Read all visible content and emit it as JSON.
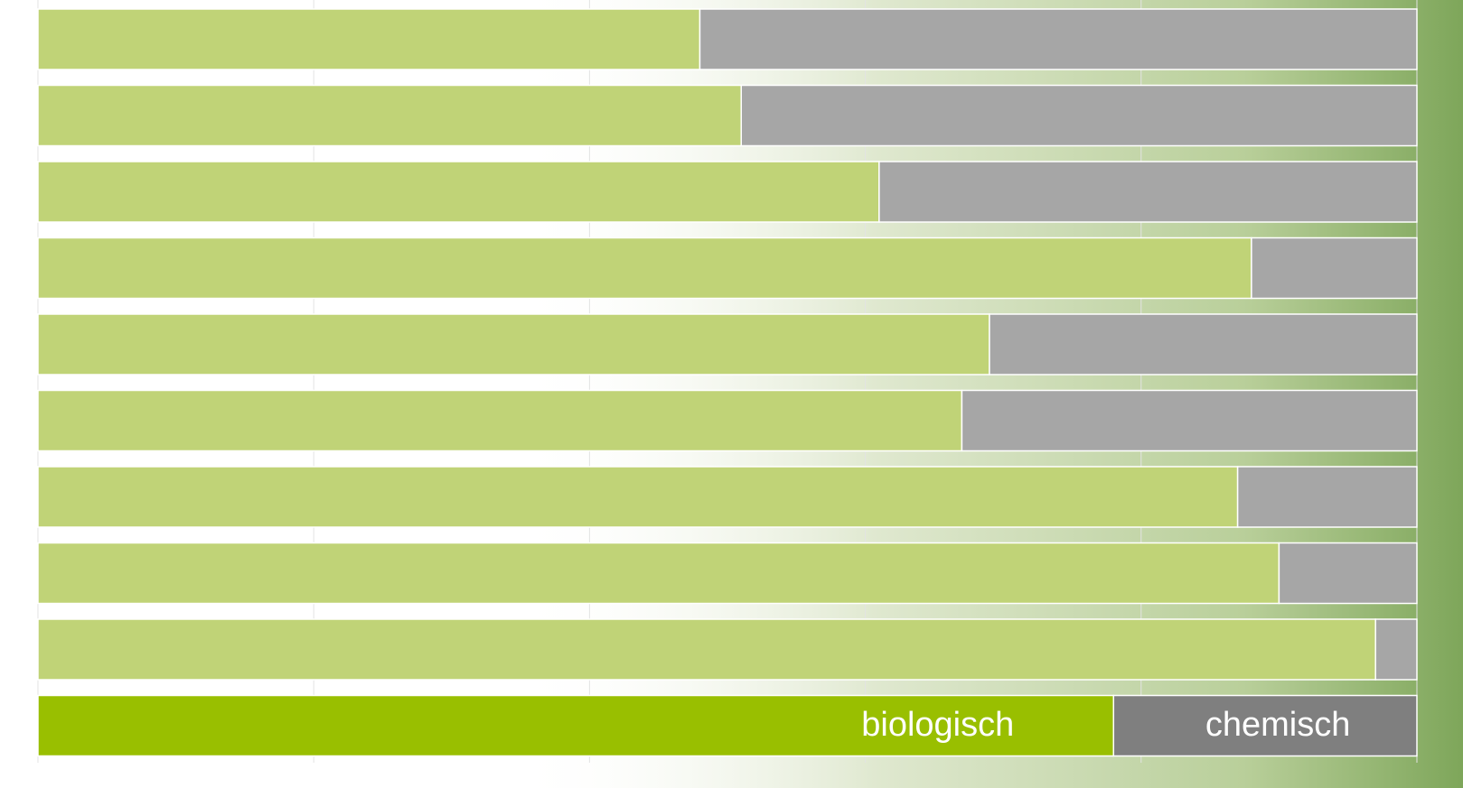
{
  "chart_data": {
    "type": "stacked-barh",
    "categories": [
      null,
      null,
      null,
      null,
      null,
      null,
      null,
      null,
      null,
      null
    ],
    "series": [
      {
        "name": "biologisch",
        "color": "#c0d377",
        "highlight_color": "#99bf00",
        "values": [
          48,
          51,
          61,
          88,
          69,
          67,
          87,
          90,
          97,
          78
        ]
      },
      {
        "name": "chemisch",
        "color": "#a6a6a6",
        "highlight_color": "#7f7f7f",
        "values": [
          52,
          49,
          39,
          12,
          31,
          33,
          13,
          10,
          3,
          22
        ]
      }
    ],
    "highlight_index": 9,
    "xlim": [
      0,
      100
    ],
    "xticks": [
      0,
      20,
      40,
      60,
      80,
      100
    ],
    "grid": true
  }
}
